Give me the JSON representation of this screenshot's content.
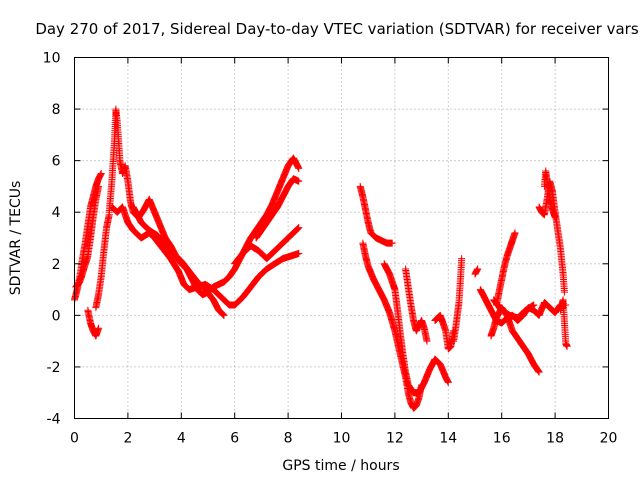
{
  "chart_data": {
    "type": "scatter",
    "title": "Day 270 of 2017, Sidereal Day-to-day VTEC variation (SDTVAR) for receiver vars",
    "xlabel": "GPS time / hours",
    "ylabel": "SDTVAR / TECUs",
    "xlim": [
      0,
      20
    ],
    "ylim": [
      -4,
      10
    ],
    "xticks": [
      "0",
      "2",
      "4",
      "6",
      "8",
      "10",
      "12",
      "14",
      "16",
      "18",
      "20"
    ],
    "yticks": [
      "-4",
      "-2",
      "0",
      "2",
      "4",
      "6",
      "8",
      "10"
    ],
    "grid": true,
    "marker": "+",
    "series": [
      {
        "name": "SDTVAR",
        "color": "#ff0000",
        "tracks": [
          [
            [
              0.0,
              0.6
            ],
            [
              0.1,
              1.0
            ],
            [
              0.2,
              1.5
            ],
            [
              0.3,
              2.2
            ],
            [
              0.4,
              2.8
            ],
            [
              0.5,
              3.5
            ],
            [
              0.6,
              4.2
            ],
            [
              0.7,
              4.6
            ],
            [
              0.8,
              5.0
            ],
            [
              0.9,
              5.3
            ],
            [
              1.0,
              5.5
            ]
          ],
          [
            [
              0.05,
              1.1
            ],
            [
              0.2,
              1.3
            ],
            [
              0.35,
              1.8
            ],
            [
              0.5,
              2.3
            ],
            [
              0.6,
              3.0
            ],
            [
              0.7,
              3.8
            ],
            [
              0.8,
              4.5
            ],
            [
              0.9,
              5.0
            ]
          ],
          [
            [
              0.5,
              0.2
            ],
            [
              0.6,
              -0.3
            ],
            [
              0.7,
              -0.6
            ],
            [
              0.8,
              -0.8
            ],
            [
              0.9,
              -0.5
            ]
          ],
          [
            [
              0.8,
              0.3
            ],
            [
              0.9,
              0.8
            ],
            [
              1.0,
              1.5
            ],
            [
              1.1,
              2.5
            ],
            [
              1.2,
              3.4
            ],
            [
              1.3,
              3.9
            ]
          ],
          [
            [
              1.3,
              4.0
            ],
            [
              1.4,
              5.2
            ],
            [
              1.5,
              6.8
            ],
            [
              1.55,
              8.0
            ],
            [
              1.6,
              7.5
            ],
            [
              1.65,
              6.8
            ],
            [
              1.7,
              6.0
            ],
            [
              1.8,
              5.5
            ],
            [
              1.9,
              5.8
            ],
            [
              2.0,
              5.2
            ],
            [
              2.1,
              4.4
            ],
            [
              2.2,
              4.0
            ],
            [
              2.4,
              3.8
            ],
            [
              2.6,
              4.1
            ],
            [
              2.8,
              4.5
            ],
            [
              3.0,
              4.0
            ],
            [
              3.2,
              3.5
            ],
            [
              3.4,
              3.0
            ],
            [
              3.6,
              2.7
            ],
            [
              3.8,
              2.3
            ],
            [
              4.0,
              2.0
            ],
            [
              4.2,
              1.8
            ],
            [
              4.4,
              1.4
            ],
            [
              4.6,
              1.0
            ],
            [
              4.8,
              0.8
            ],
            [
              5.0,
              0.9
            ],
            [
              5.2,
              1.1
            ],
            [
              5.4,
              1.2
            ],
            [
              5.6,
              1.3
            ],
            [
              5.8,
              1.5
            ],
            [
              6.0,
              1.8
            ],
            [
              6.2,
              2.2
            ],
            [
              6.4,
              2.6
            ],
            [
              6.6,
              3.0
            ],
            [
              6.8,
              3.3
            ],
            [
              7.0,
              3.6
            ],
            [
              7.2,
              3.9
            ],
            [
              7.4,
              4.3
            ],
            [
              7.6,
              4.8
            ],
            [
              7.8,
              5.3
            ],
            [
              8.0,
              5.8
            ],
            [
              8.2,
              6.1
            ],
            [
              8.4,
              5.7
            ]
          ],
          [
            [
              1.4,
              4.2
            ],
            [
              1.6,
              4.0
            ],
            [
              1.8,
              4.2
            ],
            [
              2.0,
              3.6
            ],
            [
              2.2,
              3.3
            ],
            [
              2.5,
              3.0
            ],
            [
              2.8,
              3.2
            ],
            [
              3.0,
              3.0
            ],
            [
              3.3,
              2.6
            ],
            [
              3.6,
              2.2
            ],
            [
              3.9,
              1.7
            ],
            [
              4.1,
              1.2
            ],
            [
              4.3,
              1.0
            ],
            [
              4.6,
              1.1
            ],
            [
              4.9,
              1.2
            ],
            [
              5.2,
              1.0
            ],
            [
              5.5,
              0.7
            ],
            [
              5.8,
              0.4
            ],
            [
              6.0,
              0.4
            ],
            [
              6.3,
              0.7
            ],
            [
              6.6,
              1.1
            ],
            [
              6.9,
              1.5
            ],
            [
              7.2,
              1.8
            ],
            [
              7.5,
              2.0
            ],
            [
              7.8,
              2.2
            ],
            [
              8.1,
              2.3
            ],
            [
              8.4,
              2.4
            ]
          ],
          [
            [
              2.2,
              4.2
            ],
            [
              2.5,
              3.6
            ],
            [
              2.8,
              3.3
            ],
            [
              3.1,
              3.1
            ],
            [
              3.4,
              2.8
            ],
            [
              3.7,
              2.4
            ],
            [
              4.0,
              2.1
            ],
            [
              4.3,
              1.7
            ],
            [
              4.6,
              1.3
            ],
            [
              4.9,
              1.0
            ],
            [
              5.2,
              0.6
            ],
            [
              5.4,
              0.2
            ],
            [
              5.6,
              0.0
            ]
          ],
          [
            [
              6.0,
              2.0
            ],
            [
              6.3,
              2.4
            ],
            [
              6.6,
              2.7
            ],
            [
              6.9,
              2.5
            ],
            [
              7.2,
              2.2
            ],
            [
              7.5,
              2.5
            ],
            [
              7.8,
              2.8
            ],
            [
              8.1,
              3.1
            ],
            [
              8.4,
              3.4
            ]
          ],
          [
            [
              6.8,
              3.0
            ],
            [
              7.0,
              3.3
            ],
            [
              7.2,
              3.6
            ],
            [
              7.4,
              3.9
            ],
            [
              7.6,
              4.2
            ],
            [
              7.8,
              4.6
            ],
            [
              8.0,
              5.0
            ],
            [
              8.2,
              5.3
            ],
            [
              8.4,
              5.2
            ]
          ],
          [
            [
              10.7,
              5.0
            ],
            [
              10.8,
              4.6
            ],
            [
              10.9,
              4.1
            ],
            [
              11.0,
              3.6
            ],
            [
              11.1,
              3.2
            ],
            [
              11.3,
              3.0
            ],
            [
              11.5,
              2.9
            ],
            [
              11.7,
              2.8
            ],
            [
              11.9,
              2.8
            ]
          ],
          [
            [
              10.8,
              2.8
            ],
            [
              10.9,
              2.3
            ],
            [
              11.0,
              1.9
            ],
            [
              11.2,
              1.4
            ],
            [
              11.4,
              1.0
            ],
            [
              11.6,
              0.6
            ],
            [
              11.8,
              0.1
            ],
            [
              12.0,
              -0.6
            ],
            [
              12.2,
              -1.5
            ],
            [
              12.4,
              -2.4
            ],
            [
              12.5,
              -3.0
            ],
            [
              12.6,
              -3.4
            ],
            [
              12.7,
              -3.6
            ],
            [
              12.8,
              -3.5
            ],
            [
              12.9,
              -3.2
            ],
            [
              13.0,
              -2.7
            ]
          ],
          [
            [
              11.6,
              2.0
            ],
            [
              11.8,
              1.6
            ],
            [
              12.0,
              1.0
            ],
            [
              12.1,
              0.2
            ],
            [
              12.2,
              -0.7
            ],
            [
              12.3,
              -1.5
            ],
            [
              12.4,
              -2.2
            ],
            [
              12.5,
              -2.7
            ],
            [
              12.7,
              -3.0
            ],
            [
              12.9,
              -3.0
            ],
            [
              13.1,
              -2.6
            ],
            [
              13.3,
              -2.1
            ],
            [
              13.5,
              -1.7
            ],
            [
              13.7,
              -1.9
            ],
            [
              13.9,
              -2.4
            ],
            [
              14.0,
              -2.6
            ]
          ],
          [
            [
              12.4,
              1.8
            ],
            [
              12.5,
              1.1
            ],
            [
              12.6,
              0.4
            ],
            [
              12.7,
              -0.2
            ],
            [
              12.8,
              -0.6
            ],
            [
              12.9,
              -0.4
            ],
            [
              13.0,
              -0.2
            ],
            [
              13.1,
              -0.5
            ],
            [
              13.2,
              -1.0
            ]
          ],
          [
            [
              13.5,
              -0.2
            ],
            [
              13.7,
              0.0
            ],
            [
              13.9,
              -0.6
            ],
            [
              14.0,
              -1.3
            ],
            [
              14.1,
              -1.2
            ],
            [
              14.2,
              -0.6
            ]
          ],
          [
            [
              14.2,
              -1.0
            ],
            [
              14.3,
              -0.3
            ],
            [
              14.4,
              0.5
            ],
            [
              14.45,
              1.3
            ],
            [
              14.5,
              2.2
            ]
          ],
          [
            [
              15.0,
              1.6
            ],
            [
              15.1,
              1.8
            ]
          ],
          [
            [
              15.2,
              1.0
            ],
            [
              15.4,
              0.6
            ],
            [
              15.6,
              0.2
            ],
            [
              15.8,
              -0.2
            ],
            [
              16.0,
              -0.3
            ],
            [
              16.2,
              -0.1
            ],
            [
              16.4,
              0.0
            ],
            [
              16.6,
              -0.2
            ],
            [
              16.8,
              0.0
            ],
            [
              17.0,
              0.3
            ],
            [
              17.2,
              0.2
            ],
            [
              17.4,
              0.0
            ],
            [
              17.6,
              0.5
            ],
            [
              17.8,
              0.3
            ],
            [
              18.0,
              0.1
            ],
            [
              18.2,
              0.4
            ],
            [
              18.4,
              0.4
            ]
          ],
          [
            [
              15.6,
              -0.8
            ],
            [
              15.7,
              -0.5
            ],
            [
              15.8,
              -0.1
            ],
            [
              16.0,
              0.3
            ],
            [
              16.2,
              0.0
            ],
            [
              16.4,
              -0.6
            ],
            [
              16.6,
              -0.9
            ],
            [
              16.8,
              -1.2
            ],
            [
              17.0,
              -1.5
            ],
            [
              17.2,
              -1.9
            ],
            [
              17.4,
              -2.2
            ]
          ],
          [
            [
              15.8,
              0.4
            ],
            [
              15.9,
              0.9
            ],
            [
              16.0,
              1.4
            ],
            [
              16.1,
              1.9
            ],
            [
              16.2,
              2.3
            ],
            [
              16.3,
              2.6
            ],
            [
              16.4,
              2.9
            ],
            [
              16.5,
              3.2
            ]
          ],
          [
            [
              15.7,
              0.6
            ],
            [
              16.0,
              0.2
            ],
            [
              16.3,
              0.0
            ],
            [
              16.6,
              -0.1
            ],
            [
              16.9,
              0.2
            ],
            [
              17.2,
              0.4
            ]
          ],
          [
            [
              17.4,
              4.2
            ],
            [
              17.5,
              4.0
            ],
            [
              17.6,
              3.9
            ],
            [
              17.7,
              4.5
            ],
            [
              17.8,
              5.2
            ],
            [
              17.9,
              4.8
            ],
            [
              18.0,
              4.0
            ],
            [
              18.1,
              3.3
            ],
            [
              18.2,
              2.6
            ],
            [
              18.3,
              1.6
            ],
            [
              18.35,
              0.9
            ]
          ],
          [
            [
              17.6,
              5.0
            ],
            [
              17.65,
              5.6
            ],
            [
              17.7,
              5.2
            ],
            [
              17.8,
              4.5
            ],
            [
              17.9,
              4.1
            ],
            [
              18.0,
              3.8
            ]
          ],
          [
            [
              18.2,
              0.2
            ],
            [
              18.3,
              0.6
            ],
            [
              18.4,
              -1.1
            ],
            [
              18.45,
              -1.2
            ]
          ]
        ]
      }
    ]
  }
}
